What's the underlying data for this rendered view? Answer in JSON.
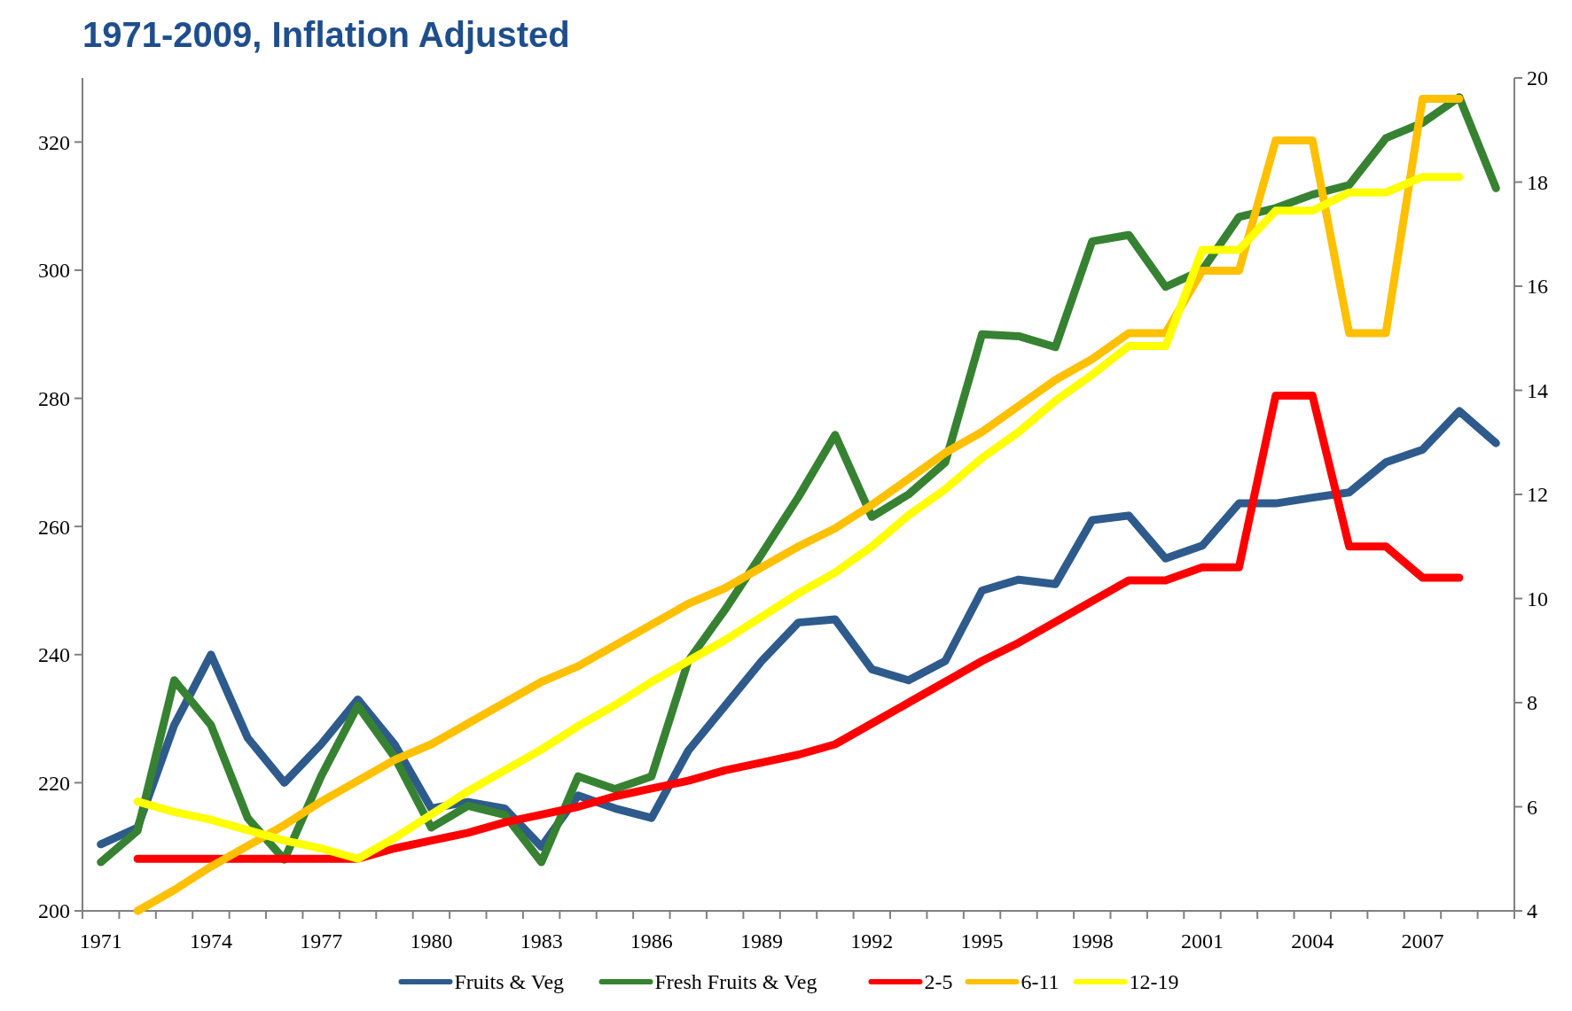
{
  "chart_data": {
    "type": "line",
    "title": "1971-2009, Inflation Adjusted",
    "categories": [
      "1971",
      null,
      null,
      "1974",
      null,
      null,
      "1977",
      null,
      null,
      "1980",
      null,
      null,
      "1983",
      null,
      null,
      "1986",
      null,
      null,
      "1989",
      null,
      null,
      "1992",
      null,
      null,
      "1995",
      null,
      null,
      "1998",
      null,
      null,
      "2001",
      null,
      null,
      "2004",
      null,
      null,
      "2007",
      null,
      null
    ],
    "ylim": [
      200,
      330
    ],
    "yticks": [
      200,
      220,
      240,
      260,
      280,
      300,
      320
    ],
    "y2lim": [
      4,
      20
    ],
    "y2ticks": [
      4,
      6,
      8,
      10,
      12,
      14,
      16,
      18,
      20
    ],
    "grid": false,
    "legend": "bottom",
    "marker": "none",
    "line_style": "solid",
    "series": [
      {
        "name": "Fruits & Veg",
        "color": "#2e5b8c",
        "values": [
          210.4,
          213,
          229,
          240,
          227,
          220,
          226,
          233,
          226,
          216,
          217,
          216,
          210,
          218,
          216,
          214.5,
          225,
          232,
          239,
          245,
          245.5,
          237.7,
          236,
          239,
          250,
          251.7,
          251,
          261,
          261.7,
          255,
          257,
          263.6,
          263.6,
          264.5,
          265.3,
          270,
          272,
          278,
          273
        ]
      },
      {
        "name": "Fresh Fruits & Veg",
        "color": "#378232",
        "values": [
          207.6,
          212.5,
          236,
          229,
          214.5,
          208,
          221,
          232,
          224,
          213,
          216.4,
          215,
          207.6,
          221,
          219,
          221,
          239,
          247,
          255.7,
          264.6,
          274.3,
          261.5,
          265,
          270,
          290,
          289.7,
          288,
          304.5,
          305.5,
          297.4,
          300,
          308.3,
          309.7,
          311.8,
          313.3,
          320.6,
          323,
          327,
          312.8
        ]
      },
      {
        "name": "2-5",
        "color": "#ff0000",
        "axis": "y2",
        "values": [
          null,
          5.0,
          5.0,
          5.0,
          5.0,
          5.0,
          5.0,
          5.0,
          5.2,
          5.35,
          5.5,
          5.7,
          5.85,
          6.0,
          6.2,
          6.35,
          6.5,
          6.7,
          6.85,
          7.0,
          7.2,
          7.6,
          8.0,
          8.4,
          8.8,
          9.15,
          9.55,
          9.95,
          10.35,
          10.35,
          10.6,
          10.6,
          13.9,
          13.9,
          11.0,
          11.0,
          10.4,
          10.4,
          null
        ]
      },
      {
        "name": "6-11",
        "color": "#ffc000",
        "axis": "y2",
        "values": [
          null,
          4.0,
          4.4,
          4.85,
          5.25,
          5.65,
          6.1,
          6.5,
          6.9,
          7.2,
          7.6,
          8.0,
          8.4,
          8.7,
          9.1,
          9.5,
          9.9,
          10.2,
          10.6,
          11.0,
          11.35,
          11.8,
          12.3,
          12.8,
          13.2,
          13.7,
          14.2,
          14.6,
          15.1,
          15.1,
          16.3,
          16.3,
          18.8,
          18.8,
          15.1,
          15.1,
          19.6,
          19.6,
          null
        ]
      },
      {
        "name": "12-19",
        "color": "#ffff00",
        "axis": "y2",
        "values": [
          null,
          6.1,
          5.9,
          5.75,
          5.55,
          5.35,
          5.2,
          5.0,
          5.4,
          5.85,
          6.3,
          6.7,
          7.1,
          7.55,
          7.95,
          8.4,
          8.8,
          9.2,
          9.65,
          10.1,
          10.5,
          11.0,
          11.6,
          12.1,
          12.7,
          13.2,
          13.8,
          14.3,
          14.85,
          14.85,
          16.7,
          16.7,
          17.45,
          17.45,
          17.8,
          17.8,
          18.1,
          18.1,
          null
        ]
      }
    ]
  }
}
